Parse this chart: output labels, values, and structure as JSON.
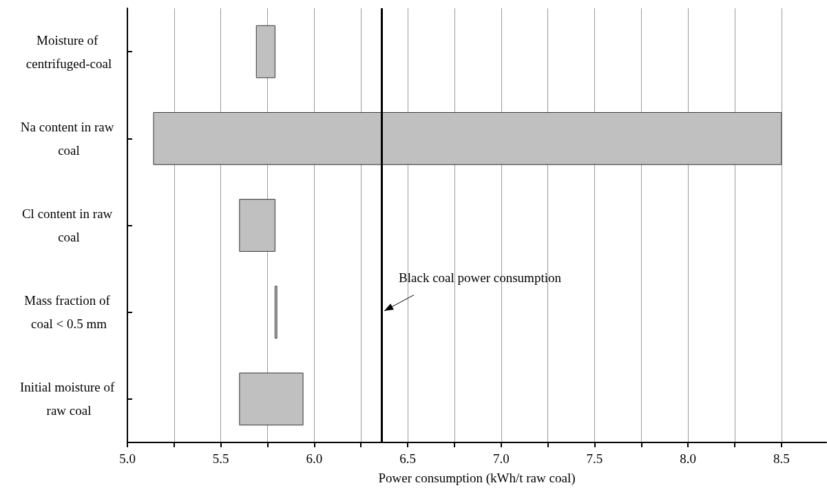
{
  "chart_data": {
    "type": "bar",
    "orientation": "horizontal",
    "categories": [
      "Moisture of centrifuged-coal",
      "Na content in raw coal",
      "Cl content in raw coal",
      "Mass fraction of coal < 0.5 mm",
      "Initial moisture of raw coal"
    ],
    "base": [
      5.69,
      5.14,
      5.6,
      5.79,
      5.6
    ],
    "values": [
      0.1,
      3.36,
      0.19,
      0.01,
      0.34
    ],
    "color": "#c0c0c0",
    "xlabel": "Power consumption (kWh/t raw coal)",
    "xlim": [
      5.0,
      8.74
    ],
    "xticks": [
      {
        "value": 5.0,
        "label": "5.0"
      },
      {
        "value": 5.25,
        "label": null
      },
      {
        "value": 5.5,
        "label": "5.5"
      },
      {
        "value": 5.75,
        "label": null
      },
      {
        "value": 6.0,
        "label": "6.0"
      },
      {
        "value": 6.25,
        "label": null
      },
      {
        "value": 6.5,
        "label": "6.5"
      },
      {
        "value": 6.75,
        "label": null
      },
      {
        "value": 7.0,
        "label": "7.0"
      },
      {
        "value": 7.25,
        "label": null
      },
      {
        "value": 7.5,
        "label": "7.5"
      },
      {
        "value": 7.75,
        "label": null
      },
      {
        "value": 8.0,
        "label": "8.0"
      },
      {
        "value": 8.25,
        "label": null
      },
      {
        "value": 8.5,
        "label": "8.5"
      }
    ],
    "grid": "x",
    "ref_lines": [
      {
        "axis": "x",
        "value": 6.36,
        "label": "Black coal power consumption",
        "color": "#000000"
      }
    ]
  }
}
